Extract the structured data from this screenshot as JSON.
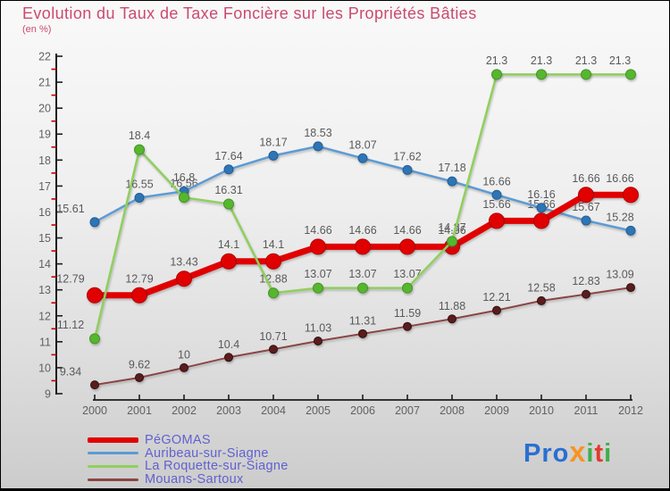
{
  "chart_data": {
    "type": "line",
    "title": "Evolution du Taux de Taxe Foncière sur les Propriétés Bâties",
    "subtitle": "(en %)",
    "categories": [
      "2000",
      "2001",
      "2002",
      "2003",
      "2004",
      "2005",
      "2006",
      "2007",
      "2008",
      "2009",
      "2010",
      "2011",
      "2012"
    ],
    "ylim": [
      9,
      22
    ],
    "y_major_step": 1,
    "y_minor_step": 0.5,
    "grid": false,
    "legend_position": "bottom-left",
    "axis_color": "#1c1c1c",
    "minor_tick_color": "#c40000",
    "value_label_color": "#595959",
    "tick_label_color": "#616161",
    "draw_order": [
      3,
      1,
      0,
      2
    ],
    "series": [
      {
        "name": "PéGOMAS",
        "line_color": "#e10000",
        "dot_color": "#e10000",
        "dot_stroke": "#b30000",
        "line_width": 7,
        "dot_radius": 8.5,
        "values": [
          12.79,
          12.79,
          13.43,
          14.1,
          14.1,
          14.66,
          14.66,
          14.66,
          14.66,
          15.66,
          15.66,
          16.66,
          16.66
        ],
        "labels": [
          "12.79",
          "12.79",
          "13.43",
          "14.1",
          "14.1",
          "14.66",
          "14.66",
          "14.66",
          "14.66",
          "15.66",
          "15.66",
          "16.66",
          "16.66"
        ]
      },
      {
        "name": "Auribeau-sur-Siagne",
        "line_color": "#5b9bd5",
        "dot_color": "#2e75b6",
        "dot_stroke": "#245e94",
        "line_width": 2.5,
        "dot_radius": 5,
        "values": [
          15.61,
          16.55,
          16.8,
          17.64,
          18.17,
          18.53,
          18.07,
          17.62,
          17.18,
          16.66,
          16.16,
          15.67,
          15.28
        ],
        "labels": [
          "15.61",
          "16.55",
          "16.8",
          "17.64",
          "18.17",
          "18.53",
          "18.07",
          "17.62",
          "17.18",
          "16.66",
          "16.16",
          "15.67",
          "15.28"
        ]
      },
      {
        "name": "La Roquette-sur-Siagne",
        "line_color": "#8fd05c",
        "dot_color": "#56b72f",
        "dot_stroke": "#459427",
        "line_width": 2.5,
        "dot_radius": 5.5,
        "values": [
          11.12,
          18.4,
          16.56,
          16.31,
          12.88,
          13.07,
          13.07,
          13.07,
          14.87,
          21.3,
          21.3,
          21.3,
          21.3
        ],
        "labels": [
          "11.12",
          "18.4",
          "16.56",
          "16.31",
          "12.88",
          "13.07",
          "13.07",
          "13.07",
          "14.87",
          "21.3",
          "21.3",
          "21.3",
          "21.3"
        ]
      },
      {
        "name": "Mouans-Sartoux",
        "line_color": "#8a4545",
        "dot_color": "#5a1c1c",
        "dot_stroke": "#341010",
        "line_width": 2,
        "dot_radius": 4.5,
        "values": [
          9.34,
          9.62,
          10,
          10.4,
          10.71,
          11.03,
          11.31,
          11.59,
          11.88,
          12.21,
          12.58,
          12.83,
          13.09
        ],
        "labels": [
          "9.34",
          "9.62",
          "10",
          "10.4",
          "10.71",
          "11.03",
          "11.31",
          "11.59",
          "11.88",
          "12.21",
          "12.58",
          "12.83",
          "13.09"
        ]
      }
    ]
  },
  "theme": {
    "title_color": "#cb4a6e",
    "legend_text_color": "#6161d1",
    "background_top": "#f9f9f9",
    "background_bottom": "#cccccc"
  },
  "logo": {
    "text": "Proxiti",
    "letter_colors": [
      "#2a6fd1",
      "#2a6fd1",
      "#2a6fd1",
      "#f79422",
      "#3fae49",
      "#e23b2e",
      "#3fae49"
    ]
  }
}
